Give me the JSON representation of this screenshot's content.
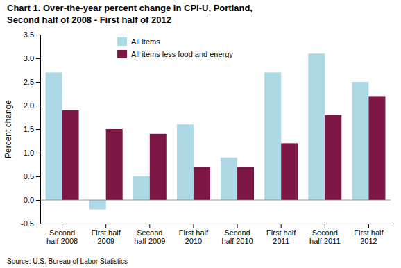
{
  "chart_data": {
    "type": "bar",
    "title": "Chart 1. Over-the-year percent change in CPI-U, Portland,",
    "subtitle": "Second half of 2008 - First half of 2012",
    "ylabel": "Percent change",
    "annotations": [
      "Source: U.S. Bureau of Labor Statistics"
    ],
    "categories": [
      "Second\nhalf 2008",
      "First half\n2009",
      "Second\nhalf 2009",
      "First half\n2010",
      "Second\nhalf 2010",
      "First half\n2011",
      "Second\nhalf 2011",
      "First half\n2012"
    ],
    "series": [
      {
        "name": "All items",
        "color": "#ADD8E6",
        "values": [
          2.7,
          -0.2,
          0.5,
          1.6,
          0.9,
          2.7,
          3.1,
          2.5
        ]
      },
      {
        "name": "All items less food and energy",
        "color": "#7B1645",
        "values": [
          1.9,
          1.5,
          1.4,
          0.7,
          0.7,
          1.2,
          1.8,
          2.2
        ]
      }
    ],
    "ylim": [
      -0.5,
      3.5
    ],
    "yticks": [
      -0.5,
      {
        "value": 0.0,
        "label": "0.0"
      },
      0.5,
      {
        "value": 1.0,
        "label": "1.0"
      },
      1.5,
      {
        "value": 2.0,
        "label": "2.0"
      },
      2.5,
      {
        "value": 3.0,
        "label": "3.0"
      },
      3.5
    ],
    "grid": false,
    "legend": "top-left"
  }
}
